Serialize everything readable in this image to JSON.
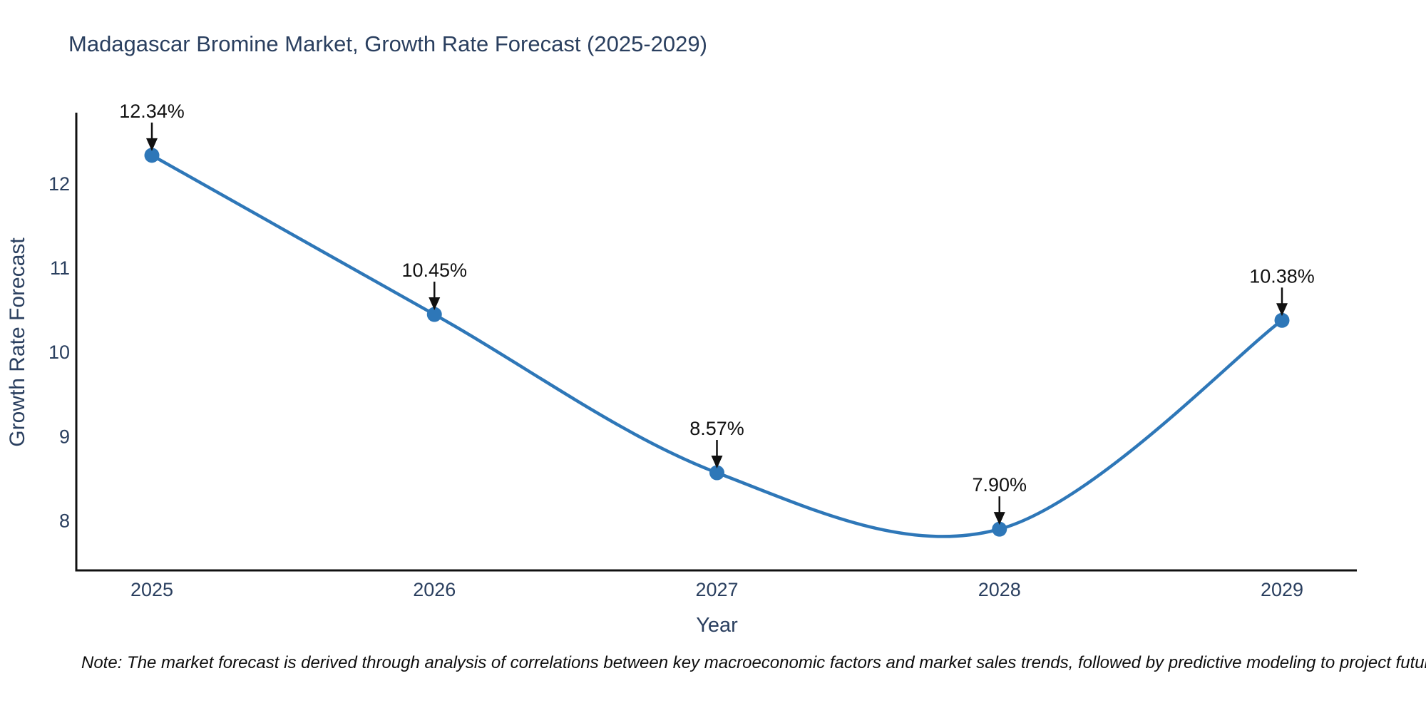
{
  "title": "Madagascar Bromine Market, Growth Rate Forecast (2025-2029)",
  "note": "Note: The market forecast is derived through analysis of correlations between key macroeconomic factors and market sales trends, followed by predictive modeling to project future sales",
  "chart_data": {
    "type": "line",
    "title": "Madagascar Bromine Market, Growth Rate Forecast (2025-2029)",
    "x": [
      2025,
      2026,
      2027,
      2028,
      2029
    ],
    "y": [
      12.34,
      10.45,
      8.57,
      7.9,
      10.38
    ],
    "point_labels": [
      "12.34%",
      "10.45%",
      "8.57%",
      "7.90%",
      "10.38%"
    ],
    "xticks": [
      "2025",
      "2026",
      "2027",
      "2028",
      "2029"
    ],
    "yticks": [
      8,
      9,
      10,
      11,
      12
    ],
    "ylim": [
      7.41,
      12.83
    ],
    "xlabel": "Year",
    "ylabel": "Growth Rate Forecast",
    "line_shape": "spline",
    "grid": false,
    "legend": "none",
    "annotations_style": "black down-arrows from labels to markers",
    "colors": {
      "line": "#2e77b8",
      "marker": "#2e77b8",
      "axis_line": "#111111",
      "tick_text": "#2a3f5f",
      "axis_title_text": "#2a3f5f",
      "title_text": "#2a3f5f",
      "annotation_text": "#111111",
      "arrow": "#111111",
      "note_text": "#0d0d0d"
    }
  }
}
